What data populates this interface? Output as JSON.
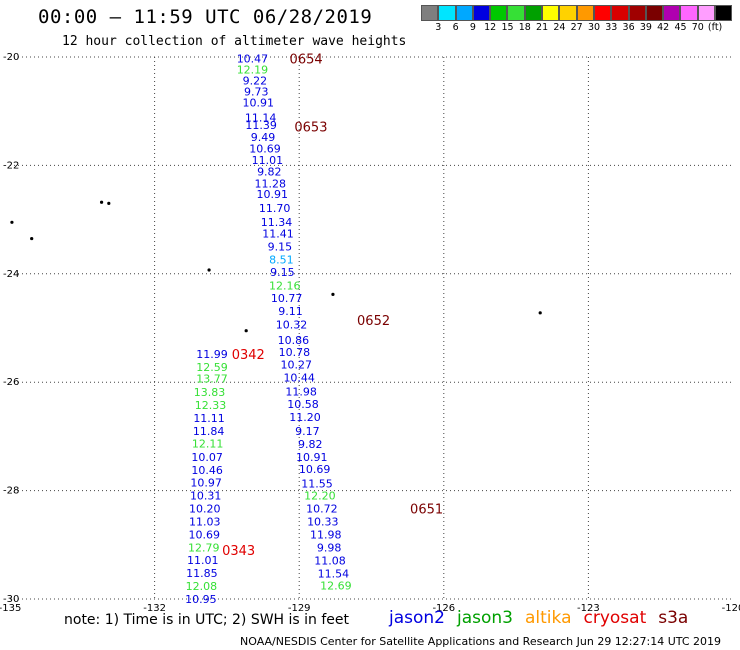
{
  "header": {
    "title": "00:00 – 11:59 UTC 06/28/2019",
    "subtitle": "12 hour collection of altimeter wave heights"
  },
  "legend": {
    "colors": [
      "#7f7f7f",
      "#00e5ff",
      "#00a8ff",
      "#0000e0",
      "#00c800",
      "#36e036",
      "#00a000",
      "#ffff00",
      "#ffd200",
      "#ff9900",
      "#ff0000",
      "#d80000",
      "#a00000",
      "#7a0000",
      "#b000b0",
      "#ff66ff",
      "#ff9eff",
      "#000000"
    ],
    "labels": [
      "3",
      "6",
      "9",
      "12",
      "15",
      "18",
      "21",
      "24",
      "27",
      "30",
      "33",
      "36",
      "39",
      "42",
      "45",
      "70",
      "(ft)"
    ]
  },
  "footer": {
    "note": "note: 1) Time is in UTC; 2) SWH is in feet",
    "satellites": [
      {
        "name": "jason2",
        "color": "#0000e0"
      },
      {
        "name": "jason3",
        "color": "#00a000"
      },
      {
        "name": "altika",
        "color": "#ff9900"
      },
      {
        "name": "cryosat",
        "color": "#e00000"
      },
      {
        "name": "s3a",
        "color": "#7a0000"
      }
    ],
    "credit": "NOAA/NESDIS Center for Satellite Applications and Research   Jun 29 12:27:14 UTC 2019"
  },
  "chart_data": {
    "type": "scatter",
    "title": "00:00 – 11:59 UTC 06/28/2019",
    "subtitle": "12 hour collection of altimeter wave heights",
    "x_ticks": [
      -135,
      -132,
      -129,
      -126,
      -123,
      -120
    ],
    "y_ticks": [
      -20,
      -22,
      -24,
      -26,
      -28,
      -30
    ],
    "x_tick_labels": [
      "-135",
      "-132",
      "-129",
      "-126",
      "-123",
      "-120"
    ],
    "y_tick_labels": [
      "-20",
      "-22",
      "-24",
      "-26",
      "-28",
      "-30"
    ],
    "xlim": [
      -135,
      -120
    ],
    "ylim": [
      -30,
      -20
    ],
    "grid": true,
    "time_labels": [
      {
        "text": "0654",
        "lon": -129.2,
        "lat": -20.03,
        "color": "#7a0000"
      },
      {
        "text": "0653",
        "lon": -129.1,
        "lat": -21.28,
        "color": "#7a0000"
      },
      {
        "text": "0652",
        "lon": -127.8,
        "lat": -24.85,
        "color": "#7a0000"
      },
      {
        "text": "0342",
        "lon": -130.4,
        "lat": -25.48,
        "color": "#e00000"
      },
      {
        "text": "0651",
        "lon": -126.7,
        "lat": -28.33,
        "color": "#7a0000"
      },
      {
        "text": "0343",
        "lon": -130.6,
        "lat": -29.1,
        "color": "#e00000"
      }
    ],
    "islands": [
      {
        "lon": -133.1,
        "lat": -22.68
      },
      {
        "lon": -132.95,
        "lat": -22.7
      },
      {
        "lon": -134.96,
        "lat": -23.05
      },
      {
        "lon": -134.55,
        "lat": -23.35
      },
      {
        "lon": -130.87,
        "lat": -23.93
      },
      {
        "lon": -130.1,
        "lat": -25.05
      },
      {
        "lon": -128.3,
        "lat": -24.38
      },
      {
        "lon": -124.0,
        "lat": -24.72
      }
    ],
    "series": [
      {
        "name": "0654-0651",
        "points": [
          {
            "lon": -129.97,
            "lat": -20.03,
            "swh": "10.47",
            "color": "#0000e0"
          },
          {
            "lon": -129.97,
            "lat": -20.23,
            "swh": "12.19",
            "color": "#36e036"
          },
          {
            "lon": -129.92,
            "lat": -20.43,
            "swh": "9.22",
            "color": "#0000e0"
          },
          {
            "lon": -129.89,
            "lat": -20.64,
            "swh": "9.73",
            "color": "#0000e0"
          },
          {
            "lon": -129.85,
            "lat": -20.84,
            "swh": "10.91",
            "color": "#0000e0"
          },
          {
            "lon": -129.8,
            "lat": -21.12,
            "swh": "11.14",
            "color": "#0000e0"
          },
          {
            "lon": -129.79,
            "lat": -21.25,
            "swh": "11.39",
            "color": "#0000e0"
          },
          {
            "lon": -129.75,
            "lat": -21.48,
            "swh": "9.49",
            "color": "#0000e0"
          },
          {
            "lon": -129.71,
            "lat": -21.69,
            "swh": "10.69",
            "color": "#0000e0"
          },
          {
            "lon": -129.66,
            "lat": -21.9,
            "swh": "11.01",
            "color": "#0000e0"
          },
          {
            "lon": -129.62,
            "lat": -22.11,
            "swh": "9.82",
            "color": "#0000e0"
          },
          {
            "lon": -129.6,
            "lat": -22.33,
            "swh": "11.28",
            "color": "#0000e0"
          },
          {
            "lon": -129.56,
            "lat": -22.53,
            "swh": "10.91",
            "color": "#0000e0"
          },
          {
            "lon": -129.51,
            "lat": -22.79,
            "swh": "11.70",
            "color": "#0000e0"
          },
          {
            "lon": -129.47,
            "lat": -23.04,
            "swh": "11.34",
            "color": "#0000e0"
          },
          {
            "lon": -129.44,
            "lat": -23.26,
            "swh": "11.41",
            "color": "#0000e0"
          },
          {
            "lon": -129.4,
            "lat": -23.5,
            "swh": "9.15",
            "color": "#0000e0"
          },
          {
            "lon": -129.37,
            "lat": -23.74,
            "swh": "8.51",
            "color": "#00a8ff"
          },
          {
            "lon": -129.35,
            "lat": -23.97,
            "swh": "9.15",
            "color": "#0000e0"
          },
          {
            "lon": -129.3,
            "lat": -24.22,
            "swh": "12.16",
            "color": "#36e036"
          },
          {
            "lon": -129.26,
            "lat": -24.45,
            "swh": "10.77",
            "color": "#0000e0"
          },
          {
            "lon": -129.18,
            "lat": -24.69,
            "swh": "9.11",
            "color": "#0000e0"
          },
          {
            "lon": -129.16,
            "lat": -24.94,
            "swh": "10.32",
            "color": "#0000e0"
          },
          {
            "lon": -129.12,
            "lat": -25.22,
            "swh": "10.86",
            "color": "#0000e0"
          },
          {
            "lon": -129.1,
            "lat": -25.44,
            "swh": "10.78",
            "color": "#0000e0"
          },
          {
            "lon": -129.06,
            "lat": -25.67,
            "swh": "10.27",
            "color": "#0000e0"
          },
          {
            "lon": -129.0,
            "lat": -25.91,
            "swh": "10.44",
            "color": "#0000e0"
          },
          {
            "lon": -128.96,
            "lat": -26.17,
            "swh": "11.98",
            "color": "#0000e0"
          },
          {
            "lon": -128.92,
            "lat": -26.4,
            "swh": "10.58",
            "color": "#0000e0"
          },
          {
            "lon": -128.88,
            "lat": -26.64,
            "swh": "11.20",
            "color": "#0000e0"
          },
          {
            "lon": -128.83,
            "lat": -26.9,
            "swh": "9.17",
            "color": "#0000e0"
          },
          {
            "lon": -128.77,
            "lat": -27.14,
            "swh": "9.82",
            "color": "#0000e0"
          },
          {
            "lon": -128.74,
            "lat": -27.38,
            "swh": "10.91",
            "color": "#0000e0"
          },
          {
            "lon": -128.68,
            "lat": -27.6,
            "swh": "10.69",
            "color": "#0000e0"
          },
          {
            "lon": -128.63,
            "lat": -27.87,
            "swh": "11.55",
            "color": "#0000e0"
          },
          {
            "lon": -128.57,
            "lat": -28.09,
            "swh": "12.20",
            "color": "#36e036"
          },
          {
            "lon": -128.53,
            "lat": -28.33,
            "swh": "10.72",
            "color": "#0000e0"
          },
          {
            "lon": -128.51,
            "lat": -28.57,
            "swh": "10.33",
            "color": "#0000e0"
          },
          {
            "lon": -128.45,
            "lat": -28.81,
            "swh": "11.98",
            "color": "#0000e0"
          },
          {
            "lon": -128.38,
            "lat": -29.05,
            "swh": "9.98",
            "color": "#0000e0"
          },
          {
            "lon": -128.36,
            "lat": -29.29,
            "swh": "11.08",
            "color": "#0000e0"
          },
          {
            "lon": -128.29,
            "lat": -29.53,
            "swh": "11.54",
            "color": "#0000e0"
          },
          {
            "lon": -128.24,
            "lat": -29.75,
            "swh": "12.69",
            "color": "#36e036"
          }
        ]
      },
      {
        "name": "0342-0343",
        "points": [
          {
            "lon": -130.81,
            "lat": -25.48,
            "swh": "11.99",
            "color": "#0000e0"
          },
          {
            "lon": -130.81,
            "lat": -25.72,
            "swh": "12.59",
            "color": "#36e036"
          },
          {
            "lon": -130.81,
            "lat": -25.93,
            "swh": "13.77",
            "color": "#36e036"
          },
          {
            "lon": -130.86,
            "lat": -26.18,
            "swh": "13.83",
            "color": "#36e036"
          },
          {
            "lon": -130.84,
            "lat": -26.42,
            "swh": "12.33",
            "color": "#36e036"
          },
          {
            "lon": -130.87,
            "lat": -26.66,
            "swh": "11.11",
            "color": "#0000e0"
          },
          {
            "lon": -130.88,
            "lat": -26.9,
            "swh": "11.84",
            "color": "#0000e0"
          },
          {
            "lon": -130.9,
            "lat": -27.13,
            "swh": "12.11",
            "color": "#36e036"
          },
          {
            "lon": -130.91,
            "lat": -27.38,
            "swh": "10.07",
            "color": "#0000e0"
          },
          {
            "lon": -130.91,
            "lat": -27.62,
            "swh": "10.46",
            "color": "#0000e0"
          },
          {
            "lon": -130.93,
            "lat": -27.85,
            "swh": "10.97",
            "color": "#0000e0"
          },
          {
            "lon": -130.94,
            "lat": -28.09,
            "swh": "10.31",
            "color": "#0000e0"
          },
          {
            "lon": -130.96,
            "lat": -28.33,
            "swh": "10.20",
            "color": "#0000e0"
          },
          {
            "lon": -130.96,
            "lat": -28.57,
            "swh": "11.03",
            "color": "#0000e0"
          },
          {
            "lon": -130.97,
            "lat": -28.81,
            "swh": "10.69",
            "color": "#0000e0"
          },
          {
            "lon": -130.98,
            "lat": -29.05,
            "swh": "12.79",
            "color": "#36e036"
          },
          {
            "lon": -131.0,
            "lat": -29.28,
            "swh": "11.01",
            "color": "#0000e0"
          },
          {
            "lon": -131.02,
            "lat": -29.52,
            "swh": "11.85",
            "color": "#0000e0"
          },
          {
            "lon": -131.03,
            "lat": -29.76,
            "swh": "12.08",
            "color": "#36e036"
          },
          {
            "lon": -131.04,
            "lat": -30.0,
            "swh": "10.95",
            "color": "#0000e0"
          }
        ]
      }
    ]
  }
}
